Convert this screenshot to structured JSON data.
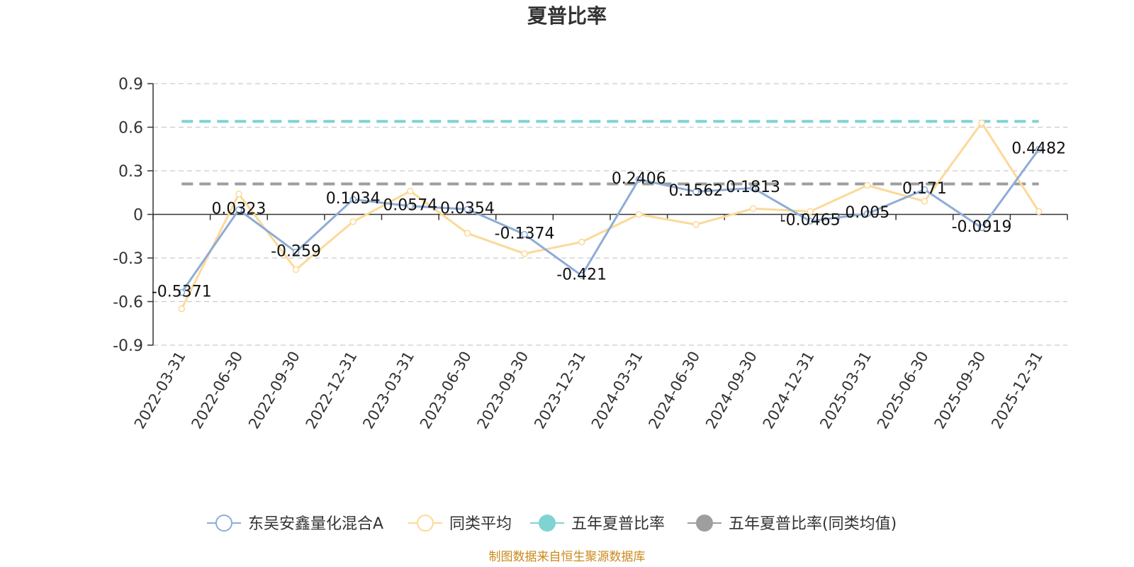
{
  "source_note": "制图数据来自恒生聚源数据库",
  "colors": {
    "fund": "#8eacd6",
    "avg": "#fcd997",
    "five_year": "#7fd3d3",
    "five_year_avg": "#9e9e9e",
    "grid": "#cccccc",
    "axis": "#333333"
  },
  "chart_data": {
    "type": "line",
    "title": "夏普比率",
    "xlabel": "",
    "ylabel": "",
    "ylim": [
      -0.9,
      0.9
    ],
    "yticks": [
      0.9,
      0.6,
      0.3,
      0,
      -0.3,
      -0.6,
      -0.9
    ],
    "ytick_labels": [
      "0.9",
      "0.6",
      "0.3",
      "0",
      "-0.3",
      "-0.6",
      "-0.9"
    ],
    "grid": true,
    "legend_position": "bottom",
    "categories": [
      "2022-03-31",
      "2022-06-30",
      "2022-09-30",
      "2022-12-31",
      "2023-03-31",
      "2023-06-30",
      "2023-09-30",
      "2023-12-31",
      "2024-03-31",
      "2024-06-30",
      "2024-09-30",
      "2024-12-31",
      "2025-03-31",
      "2025-06-30",
      "2025-09-30",
      "2025-12-31"
    ],
    "series": [
      {
        "name": "东吴安鑫量化混合A",
        "values": [
          -0.5371,
          0.0323,
          -0.259,
          0.1034,
          0.0574,
          0.0354,
          -0.1374,
          -0.421,
          0.2406,
          0.1562,
          0.1813,
          -0.0465,
          0.005,
          0.171,
          -0.0919,
          0.4482
        ],
        "labels": [
          "-0.5371",
          "0.0323",
          "-0.259",
          "0.1034",
          "0.0574",
          "0.0354",
          "-0.1374",
          "-0.421",
          "0.2406",
          "0.1562",
          "0.1813",
          "-0.0465",
          "0.005",
          "0.171",
          "-0.0919",
          "0.4482"
        ]
      },
      {
        "name": "同类平均",
        "values": [
          -0.65,
          0.14,
          -0.38,
          -0.05,
          0.16,
          -0.13,
          -0.27,
          -0.19,
          0.0,
          -0.07,
          0.04,
          0.02,
          0.2,
          0.09,
          0.63,
          0.02
        ]
      },
      {
        "name": "五年夏普比率",
        "value": 0.64
      },
      {
        "name": "五年夏普比率(同类均值)",
        "value": 0.21
      }
    ]
  }
}
